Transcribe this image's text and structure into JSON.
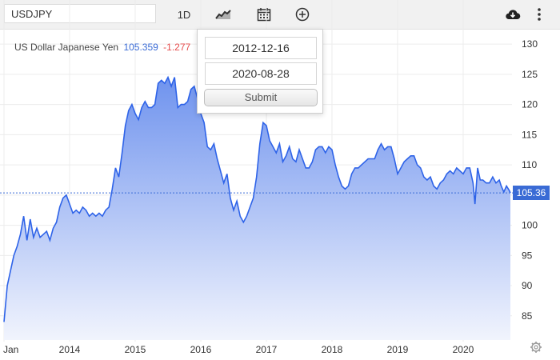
{
  "toolbar": {
    "symbol": "USDJPY",
    "interval_label": "1D",
    "icons": [
      "line-chart-icon",
      "calendar-icon",
      "plus-circle-icon",
      "cloud-download-icon",
      "more-vertical-icon"
    ]
  },
  "legend": {
    "name": "US Dollar Japanese Yen",
    "price": "105.359",
    "change": "-1.277"
  },
  "date_range": {
    "start": "2012-12-16",
    "end": "2020-08-28",
    "submit_label": "Submit"
  },
  "last_price_label": "105.36",
  "colors": {
    "line": "#2e63e8",
    "fill_top": "#6f93ee",
    "fill_bottom": "#f1f4fd",
    "change_negative": "#e54c4c",
    "price_tag": "#3a6bd5"
  },
  "chart_data": {
    "type": "area",
    "title": "US Dollar Japanese Yen",
    "x_ticks": [
      "Jan",
      "2014",
      "2015",
      "2016",
      "2017",
      "2018",
      "2019",
      "2020"
    ],
    "y_ticks": [
      85,
      90,
      95,
      100,
      105,
      110,
      115,
      120,
      125,
      130
    ],
    "ylim": [
      81,
      132
    ],
    "xlim": [
      2013.0,
      2020.72
    ],
    "grid": true,
    "last_value": 105.36,
    "series": [
      {
        "values": [
          [
            2013.0,
            84.0
          ],
          [
            2013.05,
            90.0
          ],
          [
            2013.1,
            92.5
          ],
          [
            2013.15,
            95.0
          ],
          [
            2013.2,
            96.5
          ],
          [
            2013.25,
            98.5
          ],
          [
            2013.3,
            101.5
          ],
          [
            2013.35,
            97.5
          ],
          [
            2013.4,
            101.0
          ],
          [
            2013.45,
            98.0
          ],
          [
            2013.5,
            99.5
          ],
          [
            2013.55,
            98.0
          ],
          [
            2013.6,
            98.5
          ],
          [
            2013.65,
            99.0
          ],
          [
            2013.7,
            97.5
          ],
          [
            2013.75,
            99.5
          ],
          [
            2013.8,
            100.5
          ],
          [
            2013.85,
            103.0
          ],
          [
            2013.9,
            104.5
          ],
          [
            2013.95,
            105.0
          ],
          [
            2014.0,
            103.5
          ],
          [
            2014.05,
            102.0
          ],
          [
            2014.1,
            102.5
          ],
          [
            2014.15,
            102.0
          ],
          [
            2014.2,
            103.0
          ],
          [
            2014.25,
            102.5
          ],
          [
            2014.3,
            101.5
          ],
          [
            2014.35,
            102.0
          ],
          [
            2014.4,
            101.5
          ],
          [
            2014.45,
            102.0
          ],
          [
            2014.5,
            101.5
          ],
          [
            2014.55,
            102.5
          ],
          [
            2014.6,
            103.0
          ],
          [
            2014.65,
            106.0
          ],
          [
            2014.7,
            109.5
          ],
          [
            2014.75,
            108.0
          ],
          [
            2014.8,
            112.0
          ],
          [
            2014.85,
            116.5
          ],
          [
            2014.9,
            119.0
          ],
          [
            2014.95,
            120.0
          ],
          [
            2015.0,
            118.5
          ],
          [
            2015.05,
            117.5
          ],
          [
            2015.1,
            119.5
          ],
          [
            2015.15,
            120.5
          ],
          [
            2015.2,
            119.5
          ],
          [
            2015.25,
            119.5
          ],
          [
            2015.3,
            120.0
          ],
          [
            2015.35,
            123.5
          ],
          [
            2015.4,
            124.0
          ],
          [
            2015.45,
            123.5
          ],
          [
            2015.5,
            124.5
          ],
          [
            2015.55,
            123.0
          ],
          [
            2015.6,
            124.5
          ],
          [
            2015.65,
            119.5
          ],
          [
            2015.7,
            120.0
          ],
          [
            2015.75,
            120.0
          ],
          [
            2015.8,
            120.5
          ],
          [
            2015.85,
            122.5
          ],
          [
            2015.9,
            123.0
          ],
          [
            2015.95,
            121.0
          ],
          [
            2016.0,
            118.5
          ],
          [
            2016.05,
            117.0
          ],
          [
            2016.1,
            113.0
          ],
          [
            2016.15,
            112.5
          ],
          [
            2016.2,
            113.5
          ],
          [
            2016.25,
            111.0
          ],
          [
            2016.3,
            109.0
          ],
          [
            2016.35,
            107.0
          ],
          [
            2016.4,
            108.5
          ],
          [
            2016.45,
            104.5
          ],
          [
            2016.5,
            102.5
          ],
          [
            2016.55,
            104.0
          ],
          [
            2016.6,
            101.5
          ],
          [
            2016.65,
            100.5
          ],
          [
            2016.7,
            101.5
          ],
          [
            2016.75,
            103.0
          ],
          [
            2016.8,
            104.5
          ],
          [
            2016.85,
            108.0
          ],
          [
            2016.9,
            113.5
          ],
          [
            2016.95,
            117.0
          ],
          [
            2017.0,
            116.5
          ],
          [
            2017.05,
            114.0
          ],
          [
            2017.1,
            113.0
          ],
          [
            2017.15,
            112.0
          ],
          [
            2017.2,
            113.5
          ],
          [
            2017.25,
            110.5
          ],
          [
            2017.3,
            111.5
          ],
          [
            2017.35,
            113.0
          ],
          [
            2017.4,
            111.0
          ],
          [
            2017.45,
            110.5
          ],
          [
            2017.5,
            112.5
          ],
          [
            2017.55,
            111.0
          ],
          [
            2017.6,
            109.5
          ],
          [
            2017.65,
            109.5
          ],
          [
            2017.7,
            110.5
          ],
          [
            2017.75,
            112.5
          ],
          [
            2017.8,
            113.0
          ],
          [
            2017.85,
            113.0
          ],
          [
            2017.9,
            112.0
          ],
          [
            2017.95,
            113.0
          ],
          [
            2018.0,
            112.5
          ],
          [
            2018.05,
            110.0
          ],
          [
            2018.1,
            108.0
          ],
          [
            2018.15,
            106.5
          ],
          [
            2018.2,
            106.0
          ],
          [
            2018.25,
            106.5
          ],
          [
            2018.3,
            108.5
          ],
          [
            2018.35,
            109.5
          ],
          [
            2018.4,
            109.5
          ],
          [
            2018.45,
            110.0
          ],
          [
            2018.5,
            110.5
          ],
          [
            2018.55,
            111.0
          ],
          [
            2018.6,
            111.0
          ],
          [
            2018.65,
            111.0
          ],
          [
            2018.7,
            112.5
          ],
          [
            2018.75,
            113.5
          ],
          [
            2018.8,
            112.5
          ],
          [
            2018.85,
            113.0
          ],
          [
            2018.9,
            113.0
          ],
          [
            2018.95,
            111.0
          ],
          [
            2019.0,
            108.5
          ],
          [
            2019.05,
            109.5
          ],
          [
            2019.1,
            110.5
          ],
          [
            2019.15,
            111.0
          ],
          [
            2019.2,
            111.5
          ],
          [
            2019.25,
            111.5
          ],
          [
            2019.3,
            110.0
          ],
          [
            2019.35,
            109.5
          ],
          [
            2019.4,
            108.0
          ],
          [
            2019.45,
            107.5
          ],
          [
            2019.5,
            108.0
          ],
          [
            2019.55,
            106.5
          ],
          [
            2019.6,
            106.0
          ],
          [
            2019.65,
            107.0
          ],
          [
            2019.7,
            107.5
          ],
          [
            2019.75,
            108.5
          ],
          [
            2019.8,
            109.0
          ],
          [
            2019.85,
            108.5
          ],
          [
            2019.9,
            109.5
          ],
          [
            2019.95,
            109.0
          ],
          [
            2020.0,
            108.5
          ],
          [
            2020.05,
            109.5
          ],
          [
            2020.1,
            109.5
          ],
          [
            2020.15,
            107.0
          ],
          [
            2020.18,
            103.5
          ],
          [
            2020.22,
            109.5
          ],
          [
            2020.26,
            107.5
          ],
          [
            2020.3,
            107.5
          ],
          [
            2020.35,
            107.0
          ],
          [
            2020.4,
            107.0
          ],
          [
            2020.45,
            108.0
          ],
          [
            2020.5,
            107.0
          ],
          [
            2020.55,
            107.5
          ],
          [
            2020.58,
            106.5
          ],
          [
            2020.62,
            105.5
          ],
          [
            2020.66,
            106.5
          ],
          [
            2020.7,
            105.8
          ],
          [
            2020.72,
            105.36
          ]
        ]
      }
    ]
  }
}
